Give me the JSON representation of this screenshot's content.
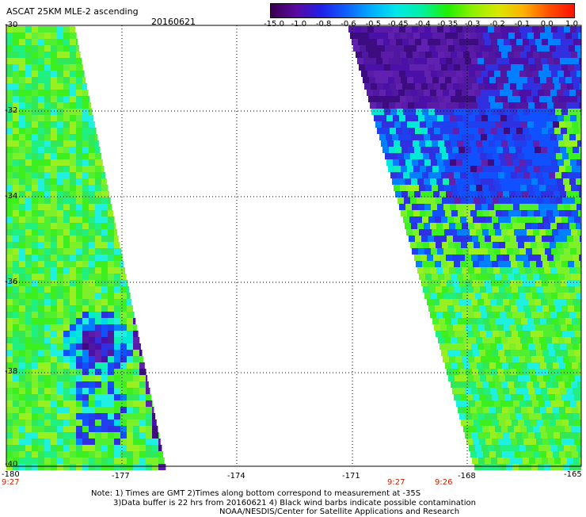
{
  "header": {
    "title": "ASCAT 25KM MLE-2 ascending",
    "date": "20160621"
  },
  "colorbar": {
    "labels": [
      "-15.0",
      "-1.0",
      "-0.8",
      "-0.6",
      "-0.5",
      "-0.45",
      "-0.4",
      "-0.35",
      "-0.3",
      "-0.2",
      "-0.1",
      "0.0",
      "1.0"
    ],
    "colors": [
      "#3a0050",
      "#5a0aa0",
      "#2020e8",
      "#1060ff",
      "#00b0ff",
      "#00e8e8",
      "#00f0a0",
      "#20f000",
      "#90f000",
      "#d8e800",
      "#ffb000",
      "#ff5000",
      "#ff1000"
    ]
  },
  "axes": {
    "lat_labels": [
      "-30",
      "-32",
      "-34",
      "-36",
      "-38",
      "-40"
    ],
    "lon_labels": [
      "-180",
      "-177",
      "-174",
      "-171",
      "-168",
      "-165"
    ]
  },
  "times": {
    "left": "9:27",
    "mid1": "9:27",
    "mid2": "9:26"
  },
  "notes": {
    "line1": "Note: 1) Times are GMT 2)Times along bottom correspond to measurement at -35S",
    "line2": "3)Data buffer is 22 hrs from 20160621 4) Black wind barbs indicate possible contamination",
    "line3": "NOAA/NESDIS/Center for Satellite Applications and Research"
  }
}
